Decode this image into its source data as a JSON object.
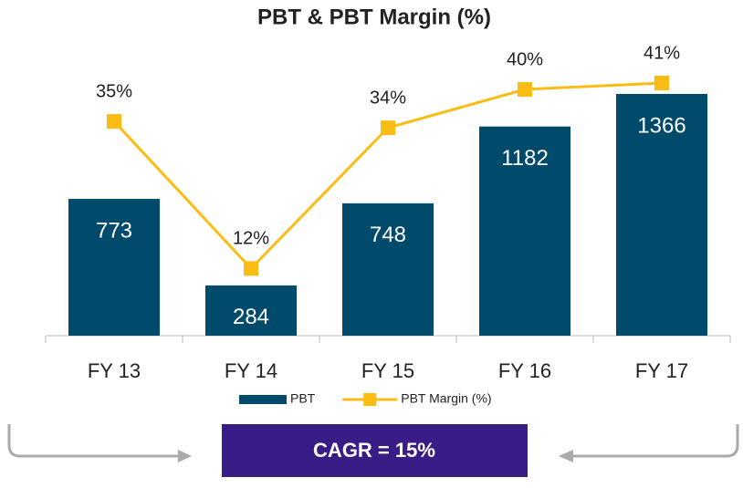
{
  "chart_data": {
    "type": "bar-line",
    "title": "PBT & PBT Margin (%)",
    "categories": [
      "FY 13",
      "FY 14",
      "FY 15",
      "FY 16",
      "FY 17"
    ],
    "series": [
      {
        "name": "PBT",
        "type": "bar",
        "color": "#004b6b",
        "values": [
          773,
          284,
          748,
          1182,
          1366
        ]
      },
      {
        "name": "PBT Margin (%)",
        "type": "line",
        "axis": "y2",
        "color": "#fbbd14",
        "values": [
          35,
          12,
          34,
          40,
          41
        ],
        "value_labels": [
          "35%",
          "12%",
          "34%",
          "40%",
          "41%"
        ]
      }
    ],
    "ylim": [
      0,
      1500
    ],
    "y2lim": [
      1.5,
      43
    ],
    "annotation": "CAGR = 15%"
  }
}
